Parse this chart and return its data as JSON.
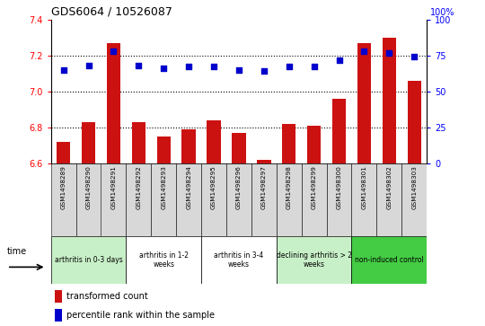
{
  "title": "GDS6064 / 10526087",
  "samples": [
    "GSM1498289",
    "GSM1498290",
    "GSM1498291",
    "GSM1498292",
    "GSM1498293",
    "GSM1498294",
    "GSM1498295",
    "GSM1498296",
    "GSM1498297",
    "GSM1498298",
    "GSM1498299",
    "GSM1498300",
    "GSM1498301",
    "GSM1498302",
    "GSM1498303"
  ],
  "bar_values": [
    6.72,
    6.83,
    7.27,
    6.83,
    6.75,
    6.79,
    6.84,
    6.77,
    6.62,
    6.82,
    6.81,
    6.96,
    7.27,
    7.3,
    7.06
  ],
  "dot_values": [
    65,
    68,
    78,
    68,
    66,
    67,
    67,
    65,
    64,
    67,
    67,
    72,
    78,
    77,
    74
  ],
  "bar_color": "#cc1111",
  "dot_color": "#0000cc",
  "ylim_left": [
    6.6,
    7.4
  ],
  "ylim_right": [
    0,
    100
  ],
  "yticks_left": [
    6.6,
    6.8,
    7.0,
    7.2,
    7.4
  ],
  "yticks_right": [
    0,
    25,
    50,
    75,
    100
  ],
  "groups": [
    {
      "label": "arthritis in 0-3 days",
      "start": 0,
      "end": 3,
      "color": "#c8f0c8"
    },
    {
      "label": "arthritis in 1-2\nweeks",
      "start": 3,
      "end": 6,
      "color": "#ffffff"
    },
    {
      "label": "arthritis in 3-4\nweeks",
      "start": 6,
      "end": 9,
      "color": "#ffffff"
    },
    {
      "label": "declining arthritis > 2\nweeks",
      "start": 9,
      "end": 12,
      "color": "#c8f0c8"
    },
    {
      "label": "non-induced control",
      "start": 12,
      "end": 15,
      "color": "#44cc44"
    }
  ],
  "legend_bar": "transformed count",
  "legend_dot": "percentile rank within the sample",
  "bar_bottom": 6.6
}
